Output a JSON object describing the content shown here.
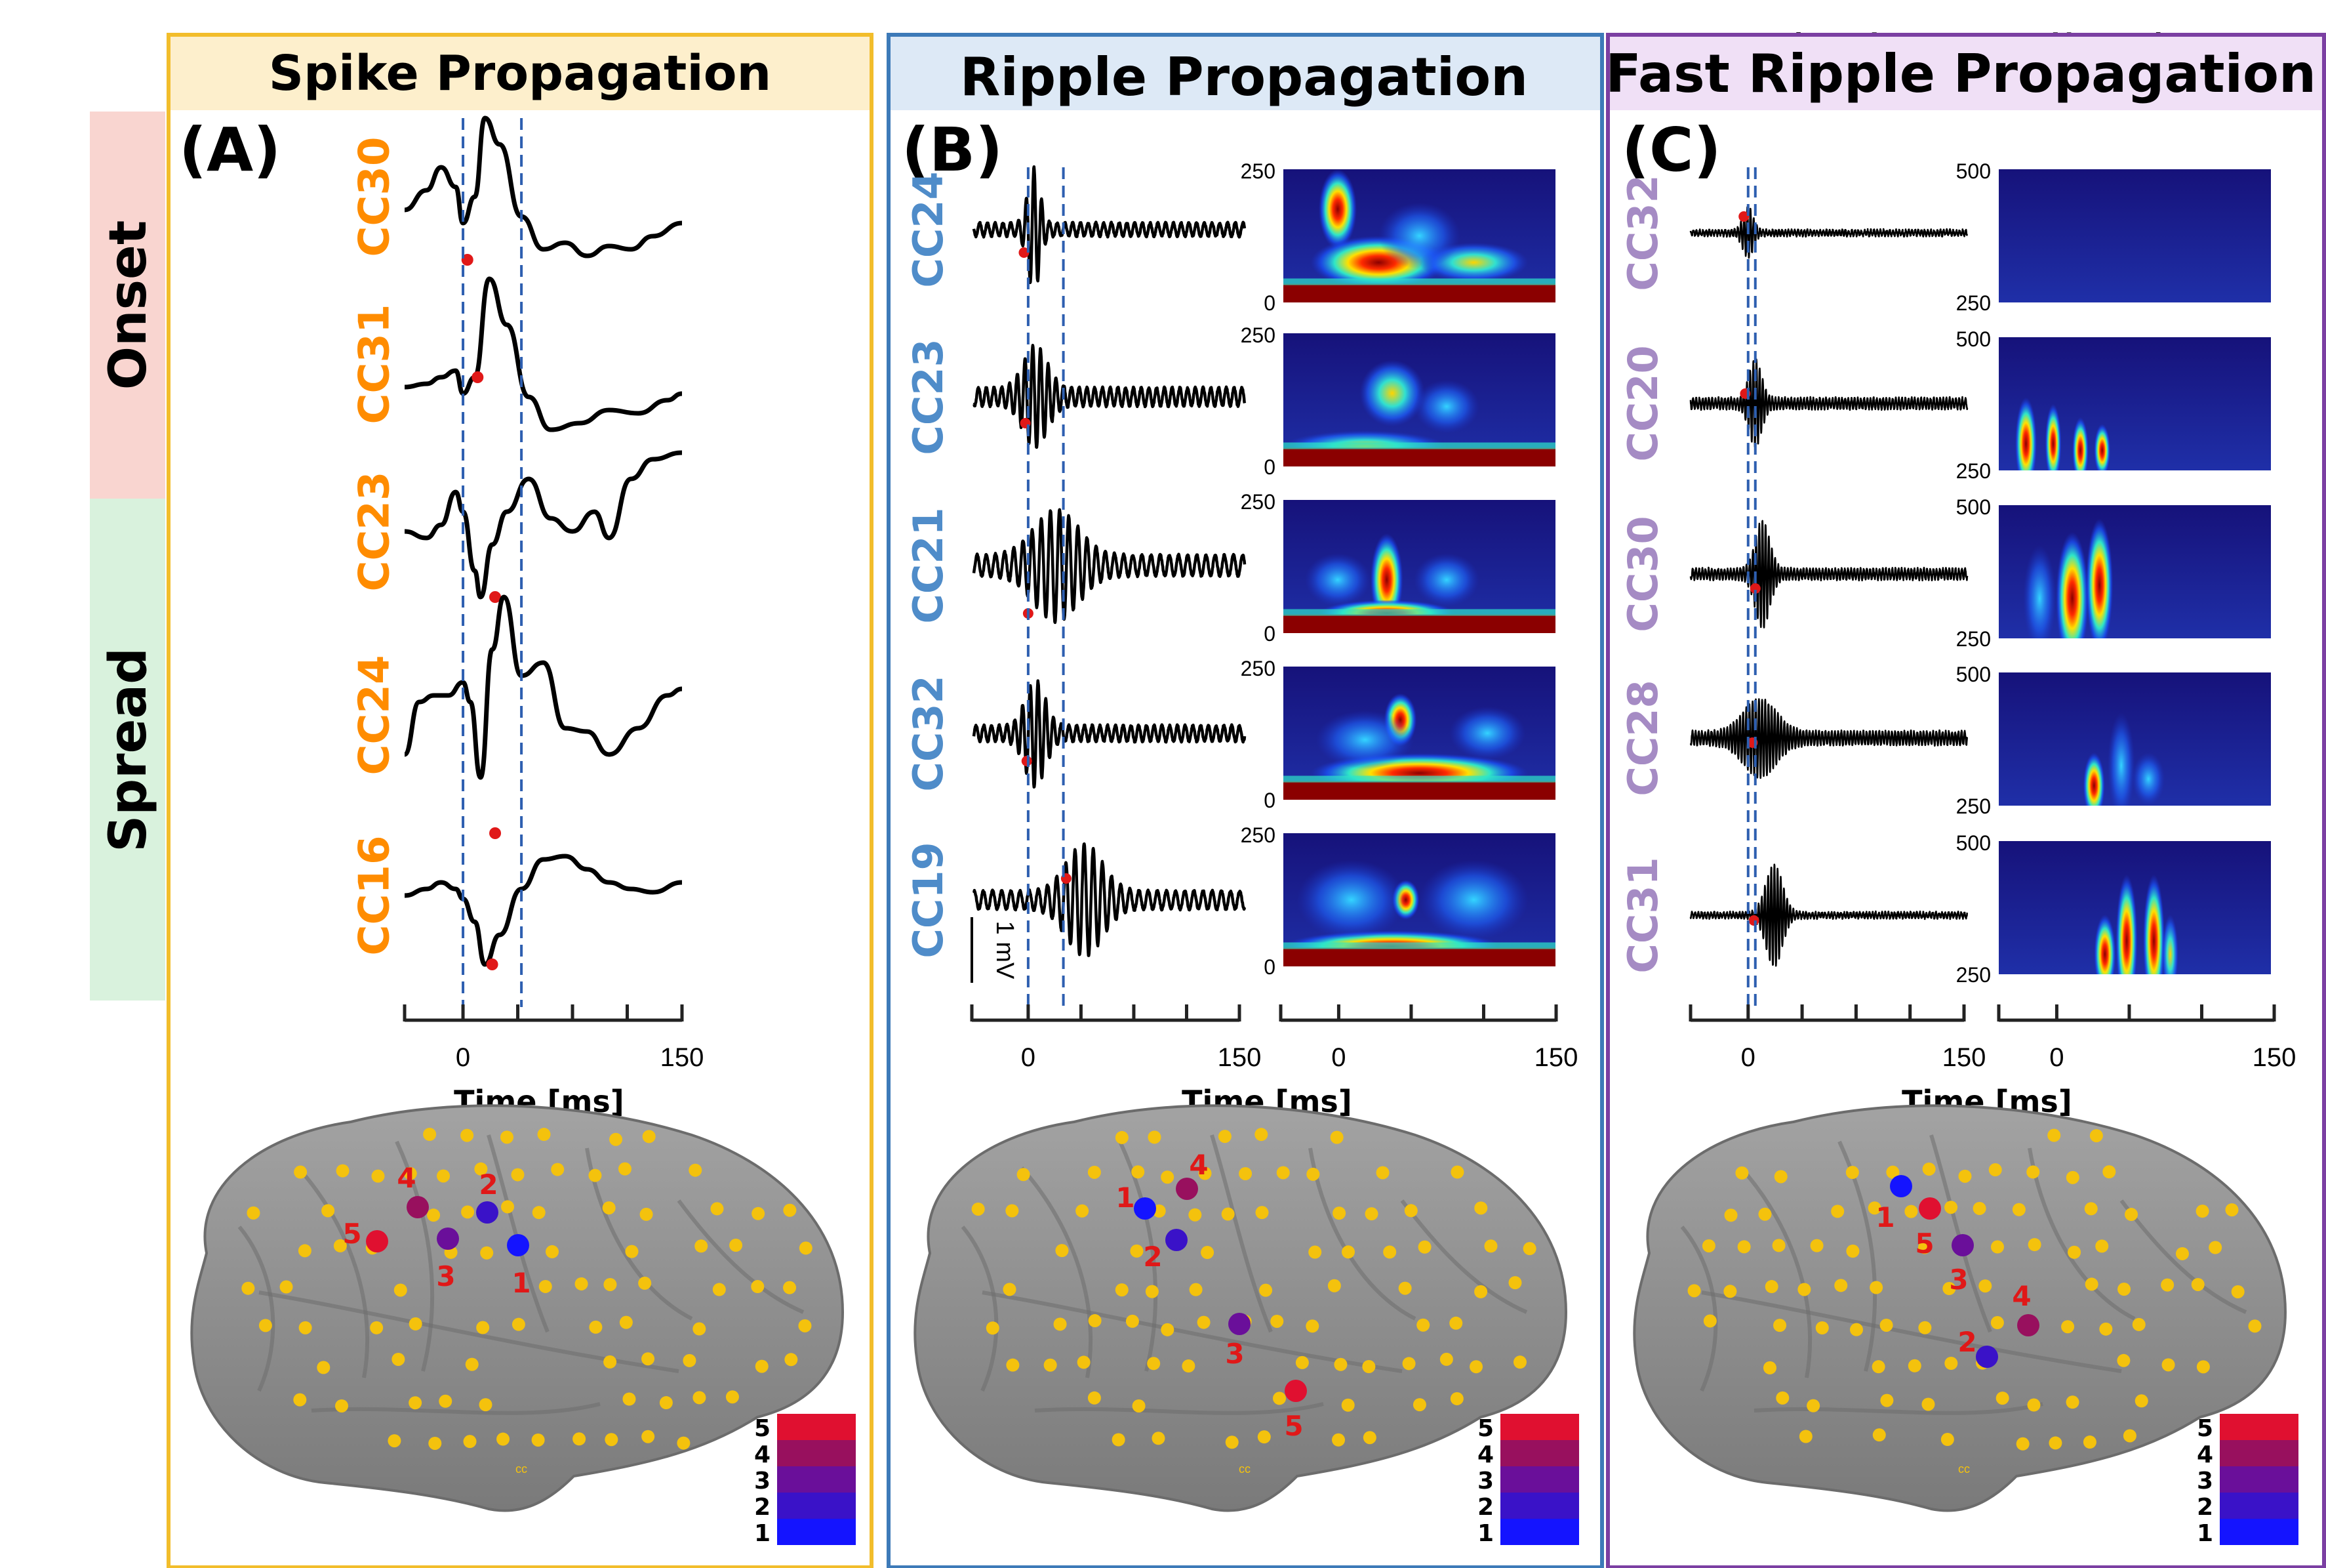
{
  "top_note": "The study was approved by North Texas Re",
  "rows": {
    "onset": "Onset",
    "spread": "Spread"
  },
  "colors": {
    "panelA": "#f2bd2b",
    "panelB": "#3d7ab8",
    "panelC": "#7b3fa2",
    "titleA_bg": "#fdefcc",
    "titleB_bg": "#dde9f6",
    "titleC_bg": "#f0e0f6",
    "onset_bg": "#f9d5d0",
    "spread_bg": "#d9f2dd",
    "chanA": "#ff8c00",
    "chanB": "#4f8cc9",
    "chanC": "#a58bc4",
    "electrode": "#f4c20d",
    "brain": "#8f8f8f",
    "rank_1": "#1414ff",
    "rank_2": "#3a12c8",
    "rank_3": "#6a0f9a",
    "rank_4": "#98105e",
    "rank_5": "#e01030"
  },
  "panels": [
    {
      "id": "A",
      "letter": "(A)",
      "title": "Spike Propagation",
      "channels": [
        "CC30",
        "CC31",
        "CC23",
        "CC24",
        "CC16"
      ],
      "xlabel": "Time [ms]",
      "time_ticks": [
        "0",
        "150"
      ],
      "trace_xlim": [
        -40,
        150
      ],
      "spectrogram_yticks": [],
      "spectrogram_xticks": [],
      "scale_bar": "",
      "brain_labels": [
        "1",
        "2",
        "3",
        "4",
        "5"
      ],
      "legend": [
        "5",
        "4",
        "3",
        "2",
        "1"
      ]
    },
    {
      "id": "B",
      "letter": "(B)",
      "title": "Ripple Propagation",
      "channels": [
        "CC24",
        "CC23",
        "CC21",
        "CC32",
        "CC19"
      ],
      "xlabel": "Time [ms]",
      "time_ticks": [
        "0",
        "150"
      ],
      "trace_xlim": [
        -40,
        150
      ],
      "spectrogram_yticks": [
        "250",
        "0"
      ],
      "spectrogram_xticks": [
        "0",
        "150"
      ],
      "scale_bar": "1 mV",
      "brain_labels": [
        "1",
        "2",
        "3",
        "4",
        "5"
      ],
      "legend": [
        "5",
        "4",
        "3",
        "2",
        "1"
      ]
    },
    {
      "id": "C",
      "letter": "(C)",
      "title": "Fast Ripple Propagation",
      "channels": [
        "CC32",
        "CC20",
        "CC30",
        "CC28",
        "CC31"
      ],
      "xlabel": "Time [ms]",
      "time_ticks": [
        "0",
        "150"
      ],
      "trace_xlim": [
        -40,
        150
      ],
      "spectrogram_yticks": [
        "500",
        "250"
      ],
      "spectrogram_xticks": [
        "0",
        "150"
      ],
      "scale_bar": "",
      "brain_labels": [
        "1",
        "2",
        "3",
        "4",
        "5"
      ],
      "legend": [
        "5",
        "4",
        "3",
        "2",
        "1"
      ]
    }
  ],
  "cortex_label": "cc"
}
